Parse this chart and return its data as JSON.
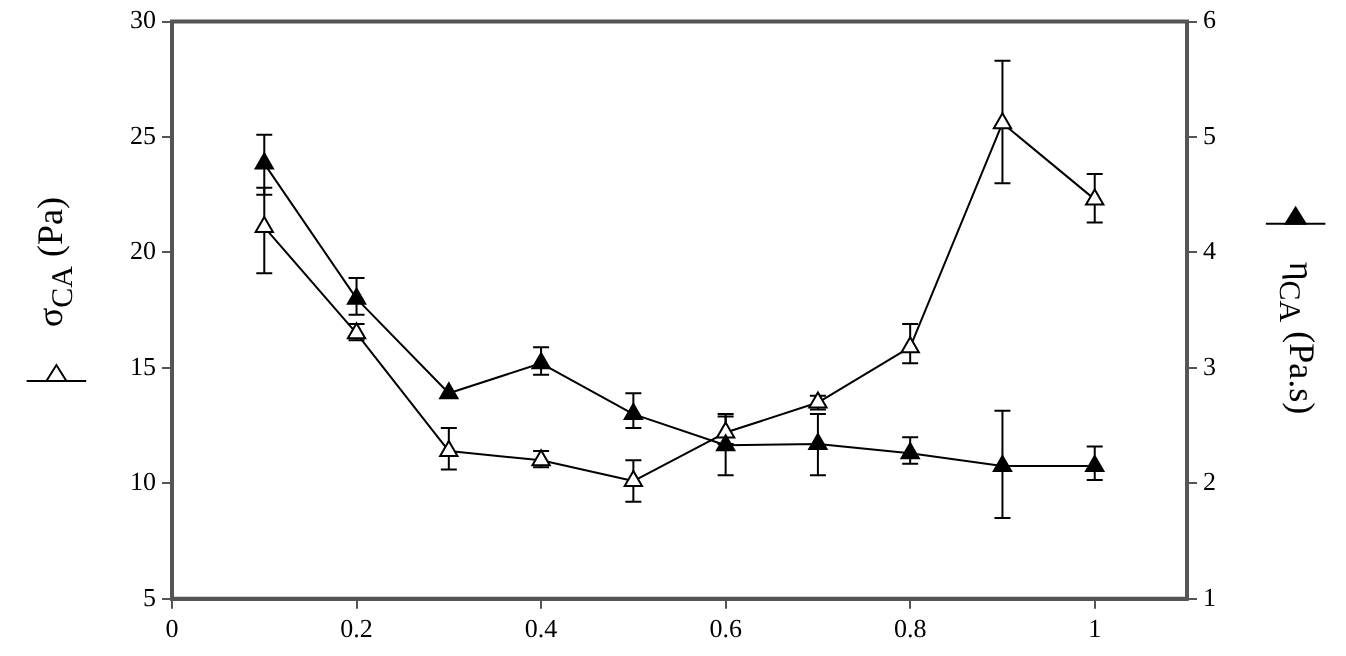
{
  "chart_data": {
    "type": "line",
    "ylabel": "σ$_{CA}$ (Pa)",
    "y2label": "η$_{CA}$ (Pa.s)",
    "x": [
      0.1,
      0.2,
      0.3,
      0.4,
      0.5,
      0.6,
      0.7,
      0.8,
      0.9,
      1
    ],
    "series": [
      {
        "color": "#000000",
        "axis": "y",
        "values": [
          21.1,
          16.5,
          11.4,
          11.0,
          10.1,
          12.2,
          13.5,
          15.9,
          25.6,
          22.3
        ],
        "errors": [
          [
            19.1,
            22.8
          ],
          [
            16.2,
            16.9
          ],
          [
            10.6,
            12.4
          ],
          [
            10.7,
            11.4
          ],
          [
            9.2,
            11.0
          ],
          [
            11.7,
            13.0
          ],
          [
            13.2,
            13.8
          ],
          [
            15.2,
            16.9
          ],
          [
            23.0,
            28.3
          ],
          [
            21.3,
            23.4
          ]
        ]
      },
      {
        "color": "#000000",
        "axis": "y2",
        "values": [
          4.77,
          3.6,
          2.78,
          3.04,
          2.6,
          2.33,
          2.34,
          2.26,
          2.15,
          2.15
        ],
        "errors": [
          [
            4.5,
            5.02
          ],
          [
            3.46,
            3.78
          ],
          null,
          [
            2.94,
            3.18
          ],
          [
            2.48,
            2.78
          ],
          [
            2.07,
            2.58
          ],
          [
            2.07,
            2.6
          ],
          [
            2.17,
            2.4
          ],
          [
            1.7,
            2.63
          ],
          [
            2.03,
            2.32
          ]
        ]
      }
    ],
    "xlim": [
      0,
      1.1
    ],
    "xticks": [
      0,
      0.2,
      0.4,
      0.6,
      0.8,
      1
    ],
    "ylim": [
      5,
      30
    ],
    "yticks": [
      5,
      10,
      15,
      20,
      25,
      30
    ],
    "y2lim": [
      1,
      6
    ],
    "y2ticks": [
      1,
      2,
      3,
      4,
      5,
      6
    ],
    "marker": "triangle",
    "line_style": "solid",
    "grid": false,
    "legend": false
  }
}
